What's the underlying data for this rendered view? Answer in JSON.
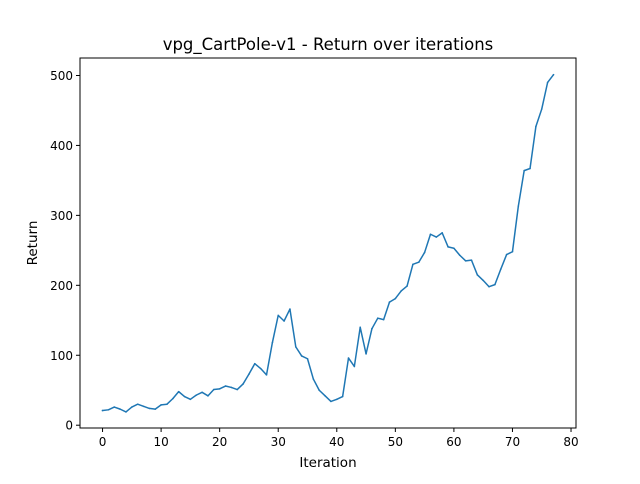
{
  "chart_data": {
    "type": "line",
    "title": "vpg_CartPole-v1 - Return over iterations",
    "xlabel": "Iteration",
    "ylabel": "Return",
    "xlim": [
      -3.85,
      80.85
    ],
    "ylim": [
      -4,
      525
    ],
    "xticks": [
      0,
      10,
      20,
      30,
      40,
      50,
      60,
      70,
      80
    ],
    "yticks": [
      0,
      100,
      200,
      300,
      400,
      500
    ],
    "grid": false,
    "legend": "none",
    "series": [
      {
        "color": "#1f77b4",
        "x": [
          0,
          1,
          2,
          3,
          4,
          5,
          6,
          7,
          8,
          9,
          10,
          11,
          12,
          13,
          14,
          15,
          16,
          17,
          18,
          19,
          20,
          21,
          22,
          23,
          24,
          25,
          26,
          27,
          28,
          29,
          30,
          31,
          32,
          33,
          34,
          35,
          36,
          37,
          38,
          39,
          40,
          41,
          42,
          43,
          44,
          45,
          46,
          47,
          48,
          49,
          50,
          51,
          52,
          53,
          54,
          55,
          56,
          57,
          58,
          59,
          60,
          61,
          62,
          63,
          64,
          65,
          66,
          67,
          68,
          69,
          70,
          71,
          72,
          73,
          74,
          75,
          76,
          77
        ],
        "y": [
          21,
          22,
          26,
          23,
          19,
          26,
          30,
          27,
          24,
          23,
          29,
          30,
          38,
          48,
          41,
          37,
          43,
          47,
          42,
          51,
          52,
          56,
          54,
          51,
          59,
          73,
          88,
          81,
          72,
          118,
          157,
          149,
          166,
          112,
          99,
          95,
          66,
          50,
          42,
          34,
          37,
          41,
          96,
          84,
          140,
          102,
          138,
          153,
          151,
          176,
          181,
          192,
          199,
          230,
          233,
          247,
          273,
          269,
          275,
          255,
          253,
          243,
          235,
          236,
          215,
          207,
          198,
          201,
          223,
          244,
          248,
          313,
          364,
          367,
          427,
          452,
          490,
          501
        ]
      }
    ]
  }
}
